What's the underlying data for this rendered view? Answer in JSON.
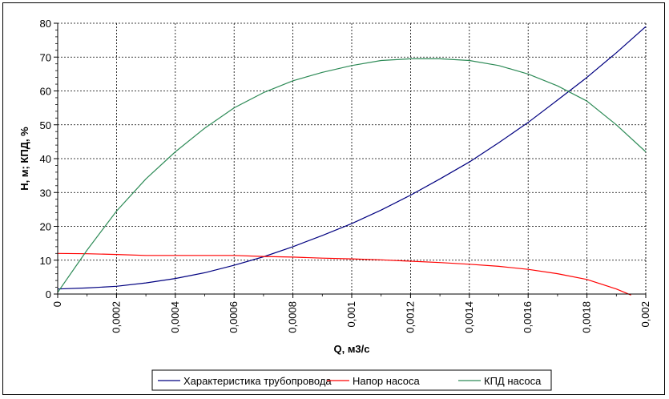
{
  "chart_data": {
    "type": "line",
    "xlabel": "Q, м3/с",
    "ylabel": "H, м; КПД, %",
    "xlim": [
      0,
      0.002
    ],
    "ylim": [
      0,
      80
    ],
    "x_ticks": [
      0,
      0.0002,
      0.0004,
      0.0006,
      0.0008,
      0.001,
      0.0012,
      0.0014,
      0.0016,
      0.0018,
      0.002
    ],
    "x_tick_labels": [
      "0",
      "0,0002",
      "0,0004",
      "0,0006",
      "0,0008",
      "0,001",
      "0,0012",
      "0,0014",
      "0,0016",
      "0,0018",
      "0,002"
    ],
    "y_ticks": [
      0,
      10,
      20,
      30,
      40,
      50,
      60,
      70,
      80
    ],
    "y_tick_labels": [
      "0",
      "10",
      "20",
      "30",
      "40",
      "50",
      "60",
      "70",
      "80"
    ],
    "grid": true,
    "legend_position": "bottom",
    "series": [
      {
        "name": "Характеристика трубопровода",
        "color": "#000080",
        "x": [
          0,
          0.0001,
          0.0002,
          0.0003,
          0.0004,
          0.0005,
          0.0006,
          0.0007,
          0.0008,
          0.0009,
          0.001,
          0.0011,
          0.0012,
          0.0013,
          0.0014,
          0.0015,
          0.0016,
          0.0017,
          0.0018,
          0.0019,
          0.002
        ],
        "y": [
          1.5,
          1.8,
          2.3,
          3.3,
          4.6,
          6.3,
          8.5,
          11.0,
          14.0,
          17.3,
          20.8,
          24.8,
          29.2,
          34.0,
          39.0,
          44.7,
          50.7,
          57.3,
          64.0,
          71.3,
          79.0
        ]
      },
      {
        "name": "Напор насоса",
        "color": "#ff0000",
        "x": [
          0,
          0.0001,
          0.0002,
          0.0003,
          0.0004,
          0.0005,
          0.0006,
          0.0007,
          0.0008,
          0.0009,
          0.001,
          0.0011,
          0.0012,
          0.0013,
          0.0014,
          0.0015,
          0.0016,
          0.0017,
          0.0018,
          0.0019,
          0.00195
        ],
        "y": [
          12.0,
          11.9,
          11.7,
          11.4,
          11.4,
          11.4,
          11.4,
          11.1,
          10.9,
          10.6,
          10.4,
          10.1,
          9.7,
          9.3,
          8.8,
          8.2,
          7.3,
          6.0,
          4.3,
          1.5,
          -0.3
        ]
      },
      {
        "name": "КПД насоса",
        "color": "#2e8b57",
        "x": [
          0,
          0.0001,
          0.0002,
          0.0003,
          0.0004,
          0.0005,
          0.0006,
          0.0007,
          0.0008,
          0.0009,
          0.001,
          0.0011,
          0.0012,
          0.0013,
          0.0014,
          0.0015,
          0.0016,
          0.0017,
          0.0018,
          0.0019,
          0.002
        ],
        "y": [
          0.5,
          13.0,
          24.5,
          34.0,
          42.0,
          49.0,
          55.0,
          59.5,
          63.0,
          65.5,
          67.5,
          69.0,
          69.5,
          69.5,
          69.0,
          67.5,
          65.0,
          61.5,
          57.0,
          50.0,
          42.0
        ]
      }
    ]
  }
}
